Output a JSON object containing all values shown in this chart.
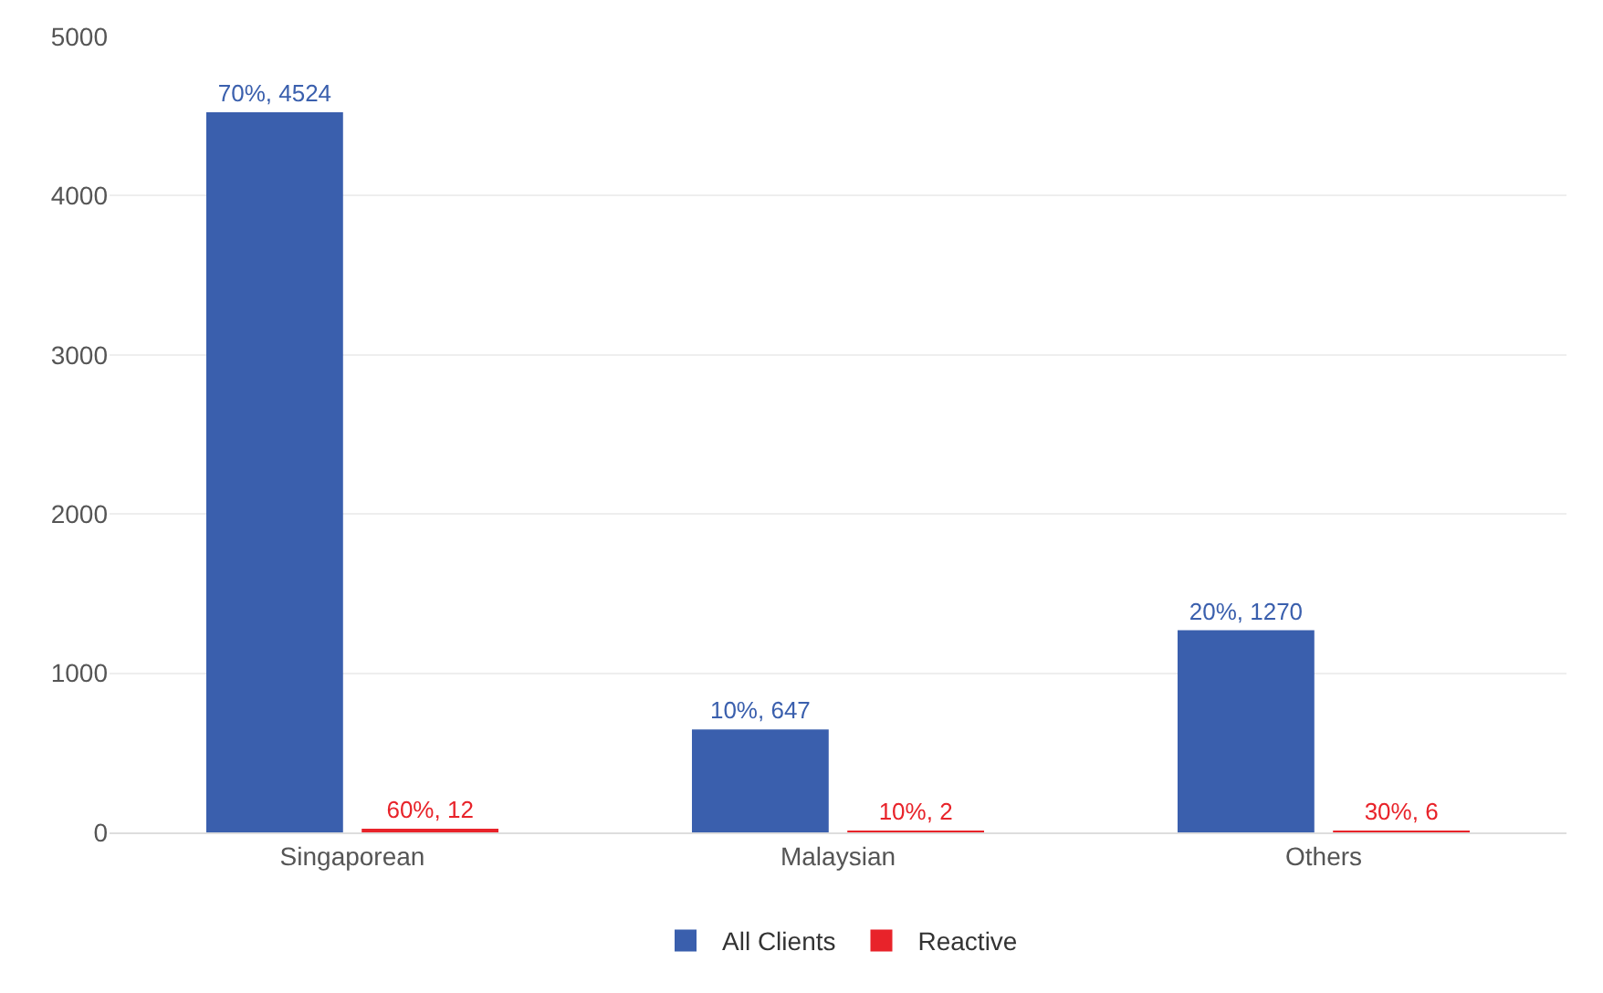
{
  "chart_data": {
    "type": "bar",
    "categories": [
      "Singaporean",
      "Malaysian",
      "Others"
    ],
    "series": [
      {
        "name": "All Clients",
        "color": "#3a5fad",
        "values": [
          4524,
          647,
          1270
        ],
        "value_labels": [
          "70%, 4524",
          "10%, 647",
          "20%, 1270"
        ]
      },
      {
        "name": "Reactive",
        "color": "#e8232a",
        "values": [
          12,
          2,
          6
        ],
        "value_labels": [
          "60%, 12",
          "10%, 2",
          "30%, 6"
        ]
      }
    ],
    "ylim": [
      0,
      5000
    ],
    "yticks": [
      0,
      1000,
      2000,
      3000,
      4000,
      5000
    ],
    "grid": "y",
    "legend": "bottom"
  }
}
